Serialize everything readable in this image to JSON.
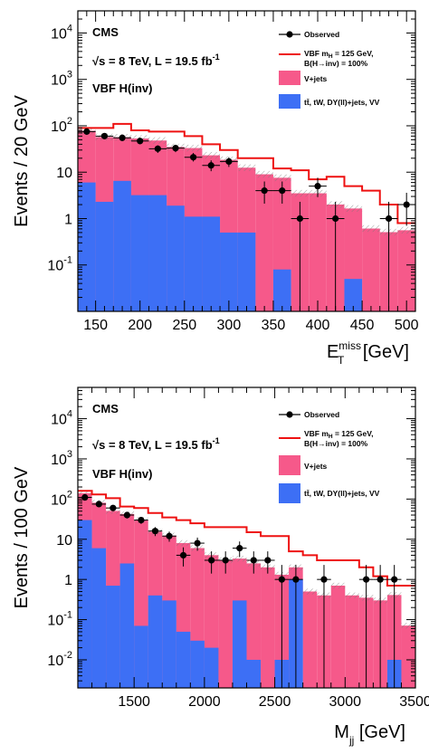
{
  "chart_data": [
    {
      "type": "bar",
      "log_y": true,
      "experiment": "CMS",
      "energy_label": "√s = 8 TeV, L = 19.5 fb",
      "energy_sup": "-1",
      "channel": "VBF H(inv)",
      "ylabel": "Events / 20 GeV",
      "xlabel_main": "E",
      "xlabel_sup": "miss",
      "xlabel_sub": "T",
      "xlabel_unit": " [GeV]",
      "xlim": [
        130,
        510
      ],
      "ylim": [
        0.01,
        30000
      ],
      "x_ticks": [
        "150",
        "200",
        "250",
        "300",
        "350",
        "400",
        "450",
        "500"
      ],
      "x_tick_values": [
        150,
        200,
        250,
        300,
        350,
        400,
        450,
        500
      ],
      "y_ticks": [
        {
          "base": "10",
          "exp": "4",
          "v": 10000
        },
        {
          "base": "10",
          "exp": "3",
          "v": 1000
        },
        {
          "base": "10",
          "exp": "2",
          "v": 100
        },
        {
          "base": "10",
          "exp": "",
          "v": 10
        },
        {
          "base": "1",
          "exp": "",
          "v": 1
        },
        {
          "base": "10",
          "exp": "-1",
          "v": 0.1
        }
      ],
      "legend": [
        {
          "label": "Observed",
          "kind": "marker"
        },
        {
          "label": "VBF m",
          "sub": "H",
          "label_rest": " = 125 GeV,",
          "label2": "B(H→inv) = 100%",
          "kind": "line",
          "color": "#ee1111"
        },
        {
          "label": "V+jets",
          "kind": "box",
          "color": "#f6598a"
        },
        {
          "label": "tt̄, tW, DY(ll)+jets, VV",
          "kind": "box",
          "color": "#3d6ff5"
        }
      ],
      "bin_edges": [
        130,
        150,
        170,
        190,
        210,
        230,
        250,
        270,
        290,
        310,
        330,
        350,
        370,
        390,
        410,
        430,
        450,
        470,
        490,
        510
      ],
      "series": [
        {
          "name": "tt̄, tW, DY(ll)+jets, VV",
          "values": [
            6,
            2.3,
            6.5,
            3.2,
            3.2,
            1.9,
            1.1,
            1.1,
            0.5,
            0.5,
            0.01,
            0.08,
            0.01,
            0.01,
            0.01,
            0.05,
            0.01,
            0.01,
            0.01
          ]
        },
        {
          "name": "V+jets",
          "values": [
            72,
            55,
            50,
            50,
            45,
            33,
            32,
            22,
            18,
            12,
            9,
            7.5,
            3.5,
            3.5,
            2,
            1.6,
            0.6,
            0.5,
            0.55
          ]
        },
        {
          "name": "VBF H(inv)",
          "values": [
            90,
            90,
            110,
            80,
            75,
            75,
            60,
            40,
            30,
            20,
            20,
            12,
            11,
            7,
            8,
            5,
            4,
            2,
            0.8
          ]
        }
      ],
      "observed": [
        {
          "x": 140,
          "y": 75,
          "lo": 65,
          "hi": 86
        },
        {
          "x": 160,
          "y": 60,
          "lo": 52,
          "hi": 69
        },
        {
          "x": 180,
          "y": 55,
          "lo": 47,
          "hi": 63
        },
        {
          "x": 200,
          "y": 47,
          "lo": 40,
          "hi": 54
        },
        {
          "x": 220,
          "y": 32,
          "lo": 26,
          "hi": 38
        },
        {
          "x": 240,
          "y": 33,
          "lo": 27,
          "hi": 39
        },
        {
          "x": 260,
          "y": 21,
          "lo": 17,
          "hi": 26
        },
        {
          "x": 280,
          "y": 14,
          "lo": 10.5,
          "hi": 18
        },
        {
          "x": 300,
          "y": 17,
          "lo": 13,
          "hi": 21
        },
        {
          "x": 340,
          "y": 4,
          "lo": 2.1,
          "hi": 6.3
        },
        {
          "x": 360,
          "y": 4,
          "lo": 2.1,
          "hi": 6.3
        },
        {
          "x": 380,
          "y": 1,
          "lo": 0.01,
          "hi": 2.3
        },
        {
          "x": 400,
          "y": 5,
          "lo": 2.9,
          "hi": 7.6
        },
        {
          "x": 420,
          "y": 1,
          "lo": 0.01,
          "hi": 2.3
        },
        {
          "x": 480,
          "y": 1,
          "lo": 0.01,
          "hi": 2.3
        },
        {
          "x": 500,
          "y": 2,
          "lo": 0.7,
          "hi": 3.6
        }
      ]
    },
    {
      "type": "bar",
      "log_y": true,
      "experiment": "CMS",
      "energy_label": "√s = 8 TeV, L = 19.5 fb",
      "energy_sup": "-1",
      "channel": "VBF H(inv)",
      "ylabel": "Events / 100 GeV",
      "xlabel_main": "M",
      "xlabel_sup": "",
      "xlabel_sub": "jj",
      "xlabel_unit": " [GeV]",
      "xlim": [
        1100,
        3500
      ],
      "ylim": [
        0.002,
        60000
      ],
      "x_ticks": [
        "1500",
        "2000",
        "2500",
        "3000",
        "3500"
      ],
      "x_tick_values": [
        1500,
        2000,
        2500,
        3000,
        3500
      ],
      "y_ticks": [
        {
          "base": "10",
          "exp": "4",
          "v": 10000
        },
        {
          "base": "10",
          "exp": "3",
          "v": 1000
        },
        {
          "base": "10",
          "exp": "2",
          "v": 100
        },
        {
          "base": "10",
          "exp": "",
          "v": 10
        },
        {
          "base": "1",
          "exp": "",
          "v": 1
        },
        {
          "base": "10",
          "exp": "-1",
          "v": 0.1
        },
        {
          "base": "10",
          "exp": "-2",
          "v": 0.01
        }
      ],
      "legend": [
        {
          "label": "Observed",
          "kind": "marker"
        },
        {
          "label": "VBF m",
          "sub": "H",
          "label_rest": " = 125 GeV,",
          "label2": "B(H→inv) = 100%",
          "kind": "line",
          "color": "#ee1111"
        },
        {
          "label": "V+jets",
          "kind": "box",
          "color": "#f6598a"
        },
        {
          "label": "tt̄, tW, DY(ll)+jets, VV",
          "kind": "box",
          "color": "#3d6ff5"
        }
      ],
      "bin_edges": [
        1100,
        1200,
        1300,
        1400,
        1500,
        1600,
        1700,
        1800,
        1900,
        2000,
        2100,
        2200,
        2300,
        2400,
        2500,
        2600,
        2700,
        2800,
        2900,
        3000,
        3100,
        3200,
        3300,
        3400,
        3500
      ],
      "series": [
        {
          "name": "tt̄, tW, DY(ll)+jets, VV",
          "values": [
            30,
            6,
            0.7,
            2.5,
            0.07,
            0.4,
            0.3,
            0.05,
            0.03,
            0.02,
            0.001,
            0.3,
            0.01,
            0.001,
            0.01,
            1,
            0.001,
            0.001,
            0.001,
            0.001,
            0.001,
            0.001,
            0.01,
            0.001
          ]
        },
        {
          "name": "V+jets",
          "values": [
            110,
            75,
            50,
            40,
            30,
            15,
            12,
            8,
            6,
            4,
            3,
            3,
            2.5,
            2,
            1.3,
            1,
            0.5,
            0.4,
            0.7,
            0.4,
            0.35,
            0.3,
            0.4,
            0.07
          ]
        },
        {
          "name": "VBF H(inv)",
          "values": [
            160,
            130,
            105,
            65,
            60,
            45,
            35,
            30,
            25,
            20,
            20,
            20,
            15,
            12,
            12,
            5,
            4,
            3,
            3,
            3,
            2,
            1.2,
            0.7,
            0.7
          ]
        }
      ],
      "observed": [
        {
          "x": 1150,
          "y": 110,
          "lo": 95,
          "hi": 125
        },
        {
          "x": 1250,
          "y": 75,
          "lo": 64,
          "hi": 86
        },
        {
          "x": 1350,
          "y": 60,
          "lo": 51,
          "hi": 70
        },
        {
          "x": 1450,
          "y": 40,
          "lo": 33,
          "hi": 47
        },
        {
          "x": 1550,
          "y": 30,
          "lo": 24,
          "hi": 36
        },
        {
          "x": 1650,
          "y": 16,
          "lo": 12,
          "hi": 20
        },
        {
          "x": 1750,
          "y": 12,
          "lo": 8.7,
          "hi": 15.5
        },
        {
          "x": 1850,
          "y": 4,
          "lo": 2.1,
          "hi": 6.3
        },
        {
          "x": 1950,
          "y": 8,
          "lo": 5.2,
          "hi": 11
        },
        {
          "x": 2050,
          "y": 3,
          "lo": 1.4,
          "hi": 5
        },
        {
          "x": 2150,
          "y": 3,
          "lo": 1.4,
          "hi": 5
        },
        {
          "x": 2250,
          "y": 6,
          "lo": 3.6,
          "hi": 8.8
        },
        {
          "x": 2350,
          "y": 3,
          "lo": 1.4,
          "hi": 5
        },
        {
          "x": 2450,
          "y": 3,
          "lo": 1.4,
          "hi": 5
        },
        {
          "x": 2550,
          "y": 1,
          "lo": 0.002,
          "hi": 2.3
        },
        {
          "x": 2650,
          "y": 1,
          "lo": 0.002,
          "hi": 2.3
        },
        {
          "x": 2850,
          "y": 1,
          "lo": 0.002,
          "hi": 2.3
        },
        {
          "x": 3150,
          "y": 1,
          "lo": 0.002,
          "hi": 2.3
        },
        {
          "x": 3250,
          "y": 1,
          "lo": 0.002,
          "hi": 2.3
        },
        {
          "x": 3350,
          "y": 1,
          "lo": 0.002,
          "hi": 2.3
        }
      ]
    }
  ]
}
